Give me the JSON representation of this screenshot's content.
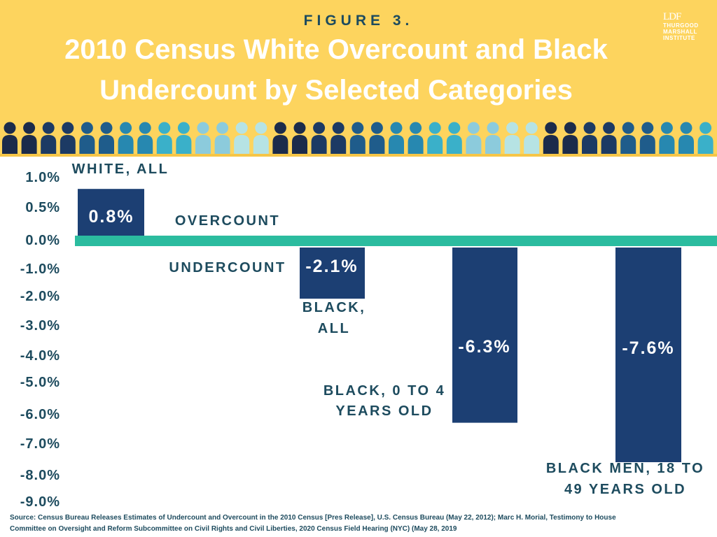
{
  "header": {
    "figure_label": "FIGURE 3.",
    "title_line1": "2010 Census White Overcount and Black",
    "title_line2": "Undercount by Selected Categories",
    "logo_mark": "LDF",
    "logo_line1": "THURGOOD",
    "logo_line2": "MARSHALL",
    "logo_line3": "INSTITUTE"
  },
  "people_palette": [
    "#1b2b4b",
    "#1c3a64",
    "#1f5c8b",
    "#2788b0",
    "#3ab0c9",
    "#8ccbdc",
    "#b6e3e4"
  ],
  "colors": {
    "header_bg": "#fdd45e",
    "bar": "#1c3f73",
    "baseline": "#2bbc9f",
    "text_dark": "#1d4b5e"
  },
  "chart_data": {
    "type": "bar",
    "title": "2010 Census White Overcount and Black Undercount by Selected Categories",
    "categories": [
      "WHITE, ALL",
      "BLACK, ALL",
      "BLACK, 0 TO 4 YEARS OLD",
      "BLACK MEN, 18 TO 49 YEARS OLD"
    ],
    "category_labels": [
      [
        "WHITE, ALL"
      ],
      [
        "BLACK,",
        "ALL"
      ],
      [
        "BLACK, 0 TO 4",
        "YEARS OLD"
      ],
      [
        "BLACK MEN, 18 TO",
        "49 YEARS OLD"
      ]
    ],
    "values": [
      0.8,
      -2.1,
      -6.3,
      -7.6
    ],
    "value_labels": [
      "0.8%",
      "-2.1%",
      "-6.3%",
      "-7.6%"
    ],
    "y_ticks": [
      {
        "value": 1.0,
        "label": "1.0%"
      },
      {
        "value": 0.5,
        "label": "0.5%"
      },
      {
        "value": 0.0,
        "label": "0.0%"
      },
      {
        "value": -1.0,
        "label": "-1.0%"
      },
      {
        "value": -2.0,
        "label": "-2.0%"
      },
      {
        "value": -3.0,
        "label": "-3.0%"
      },
      {
        "value": -4.0,
        "label": "-4.0%"
      },
      {
        "value": -5.0,
        "label": "-5.0%"
      },
      {
        "value": -6.0,
        "label": "-6.0%"
      },
      {
        "value": -7.0,
        "label": "-7.0%"
      },
      {
        "value": -8.0,
        "label": "-8.0%"
      },
      {
        "value": -9.0,
        "label": "-9.0%"
      }
    ],
    "ylim": [
      -9.0,
      1.0
    ],
    "annotations": {
      "overcount": "OVERCOUNT",
      "undercount": "UNDERCOUNT"
    },
    "grid": false
  },
  "source": {
    "line1": "Source: Census Bureau Releases Estimates of Undercount and Overcount in the 2010 Census [Pres Release], U.S. Census Bureau (May 22, 2012); Marc H. Morial, Testimony to House",
    "line2": "Committee on Oversight and Reform Subcommittee on Civil Rights and Civil Liberties, 2020 Census Field Hearing (NYC) (May 28, 2019"
  }
}
